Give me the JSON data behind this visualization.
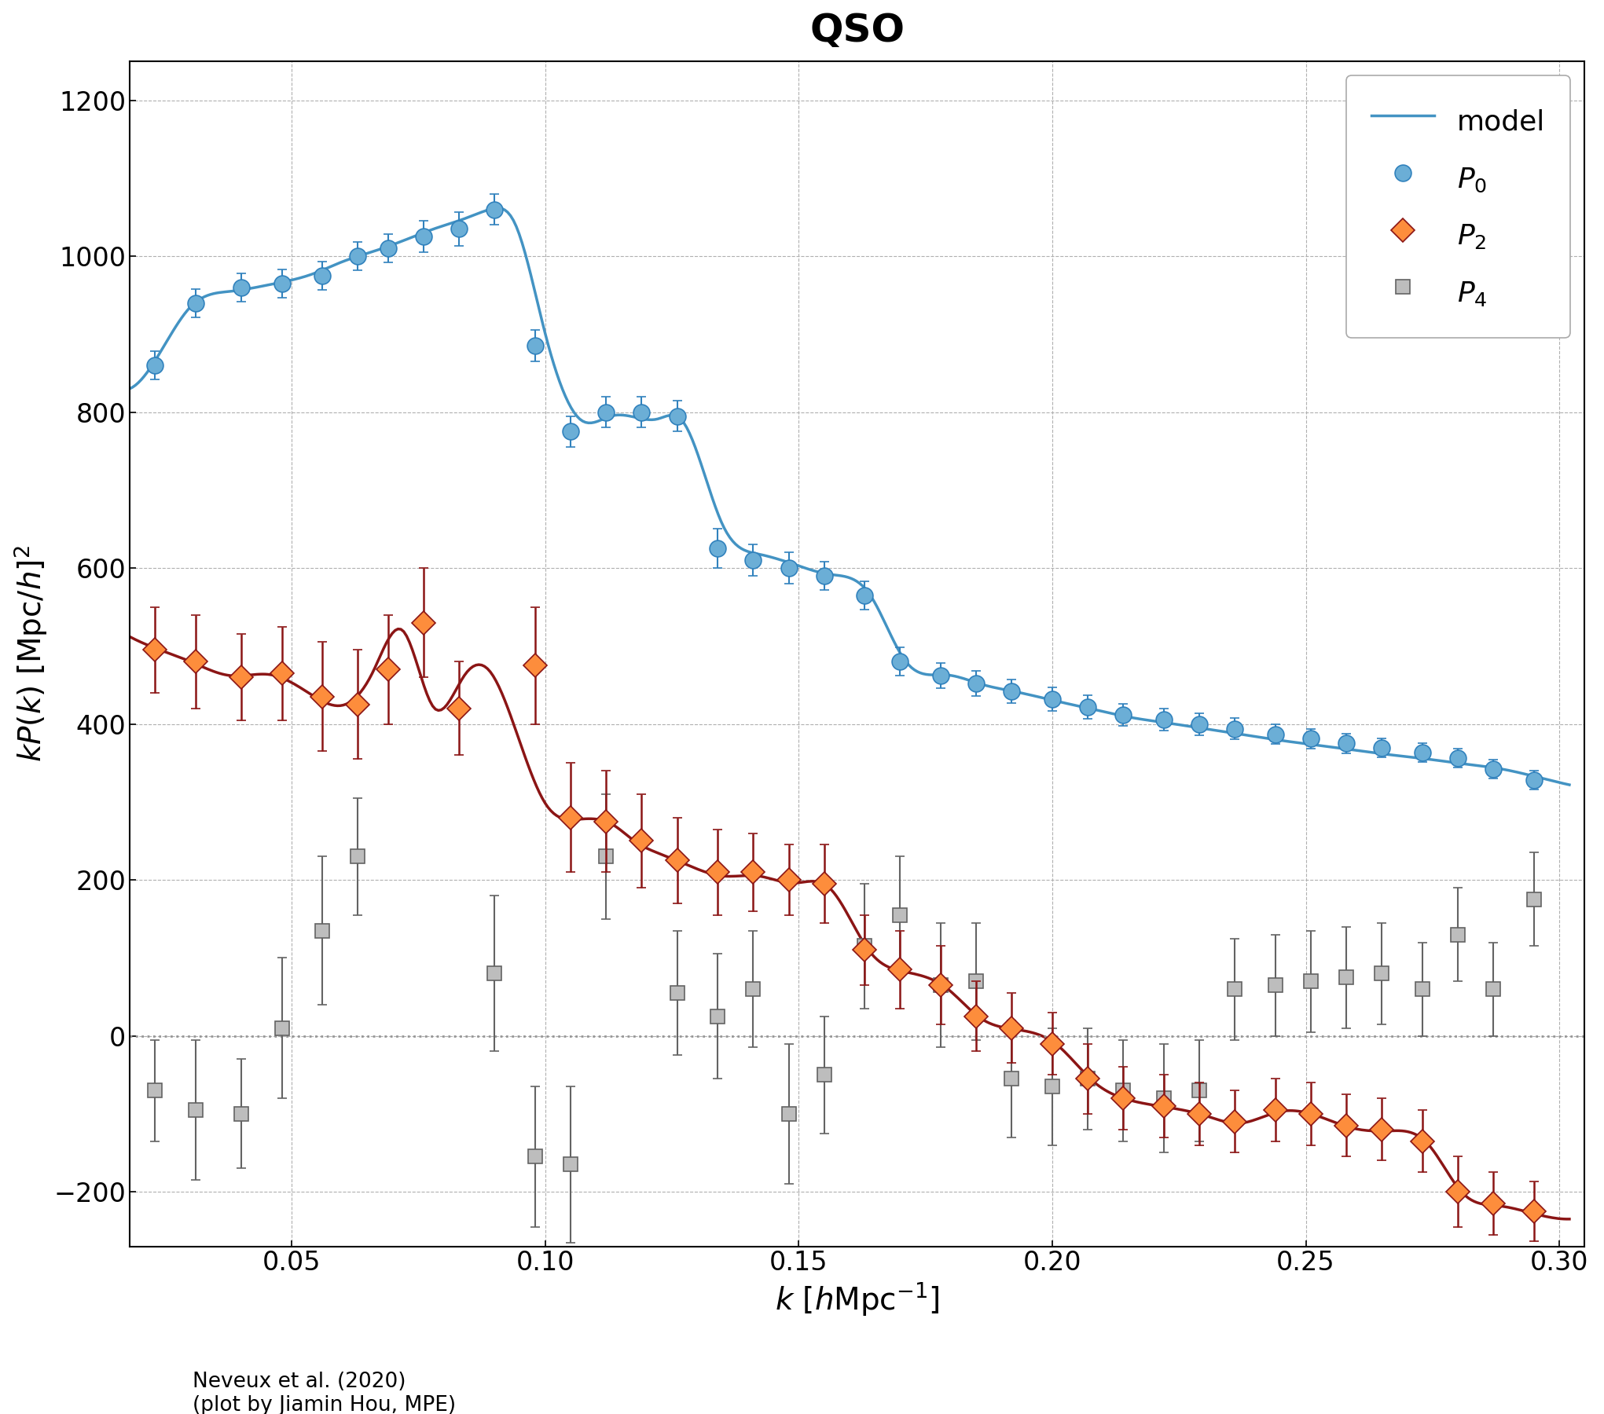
{
  "title": "QSO",
  "xlabel": "$k$ [$h$Mpc$^{-1}$]",
  "ylabel": "$kP(k)$ [Mpc/$h$]$^2$",
  "xlim": [
    0.018,
    0.305
  ],
  "ylim": [
    -270,
    1250
  ],
  "yticks": [
    -200,
    0,
    200,
    400,
    600,
    800,
    1000,
    1200
  ],
  "xticks": [
    0.05,
    0.1,
    0.15,
    0.2,
    0.25,
    0.3
  ],
  "footnote": "Neveux et al. (2020)\n(plot by Jiamin Hou, MPE)",
  "P0_k": [
    0.023,
    0.031,
    0.04,
    0.048,
    0.056,
    0.063,
    0.069,
    0.076,
    0.083,
    0.09,
    0.098,
    0.105,
    0.112,
    0.119,
    0.126,
    0.134,
    0.141,
    0.148,
    0.155,
    0.163,
    0.17,
    0.178,
    0.185,
    0.192,
    0.2,
    0.207,
    0.214,
    0.222,
    0.229,
    0.236,
    0.244,
    0.251,
    0.258,
    0.265,
    0.273,
    0.28,
    0.287,
    0.295
  ],
  "P0_v": [
    860,
    940,
    960,
    965,
    975,
    1000,
    1010,
    1025,
    1035,
    1060,
    885,
    775,
    800,
    800,
    795,
    625,
    610,
    600,
    590,
    565,
    480,
    462,
    452,
    442,
    432,
    422,
    412,
    406,
    400,
    394,
    387,
    381,
    375,
    369,
    363,
    356,
    342,
    328
  ],
  "P0_err": [
    18,
    18,
    18,
    18,
    18,
    18,
    18,
    20,
    22,
    20,
    20,
    20,
    20,
    20,
    20,
    25,
    20,
    20,
    18,
    18,
    18,
    16,
    16,
    15,
    15,
    15,
    14,
    14,
    14,
    14,
    13,
    13,
    13,
    12,
    12,
    12,
    12,
    12
  ],
  "P2_k": [
    0.023,
    0.031,
    0.04,
    0.048,
    0.056,
    0.063,
    0.069,
    0.076,
    0.083,
    0.098,
    0.105,
    0.112,
    0.119,
    0.126,
    0.134,
    0.141,
    0.148,
    0.155,
    0.163,
    0.17,
    0.178,
    0.185,
    0.192,
    0.2,
    0.207,
    0.214,
    0.222,
    0.229,
    0.236,
    0.244,
    0.251,
    0.258,
    0.265,
    0.273,
    0.28,
    0.287,
    0.295
  ],
  "P2_v": [
    495,
    480,
    460,
    465,
    435,
    425,
    470,
    530,
    420,
    475,
    280,
    275,
    250,
    225,
    210,
    210,
    200,
    195,
    110,
    85,
    65,
    25,
    10,
    -10,
    -55,
    -80,
    -90,
    -100,
    -110,
    -95,
    -100,
    -115,
    -120,
    -135,
    -200,
    -215,
    -225
  ],
  "P2_err": [
    55,
    60,
    55,
    60,
    70,
    70,
    70,
    70,
    60,
    75,
    70,
    65,
    60,
    55,
    55,
    50,
    45,
    50,
    45,
    50,
    50,
    45,
    45,
    40,
    45,
    40,
    40,
    40,
    40,
    40,
    40,
    40,
    40,
    40,
    45,
    40,
    38
  ],
  "P4_k": [
    0.023,
    0.031,
    0.04,
    0.048,
    0.056,
    0.063,
    0.09,
    0.098,
    0.105,
    0.112,
    0.126,
    0.134,
    0.141,
    0.148,
    0.155,
    0.163,
    0.17,
    0.178,
    0.185,
    0.192,
    0.2,
    0.207,
    0.214,
    0.222,
    0.229,
    0.236,
    0.244,
    0.251,
    0.258,
    0.265,
    0.273,
    0.28,
    0.287,
    0.295
  ],
  "P4_v": [
    -70,
    -95,
    -100,
    10,
    135,
    230,
    80,
    -155,
    -165,
    230,
    55,
    25,
    60,
    -100,
    -50,
    115,
    155,
    65,
    70,
    -55,
    -65,
    -55,
    -70,
    -80,
    -70,
    60,
    65,
    70,
    75,
    80,
    60,
    130,
    60,
    175
  ],
  "P4_err": [
    65,
    90,
    70,
    90,
    95,
    75,
    100,
    90,
    100,
    80,
    80,
    80,
    75,
    90,
    75,
    80,
    75,
    80,
    75,
    75,
    75,
    65,
    65,
    70,
    65,
    65,
    65,
    65,
    65,
    65,
    60,
    60,
    60,
    60
  ],
  "model_P0_knots": [
    0.018,
    0.022,
    0.03,
    0.038,
    0.046,
    0.054,
    0.06,
    0.066,
    0.072,
    0.078,
    0.084,
    0.089,
    0.094,
    0.1,
    0.107,
    0.113,
    0.118,
    0.122,
    0.127,
    0.135,
    0.142,
    0.149,
    0.156,
    0.164,
    0.171,
    0.179,
    0.186,
    0.193,
    0.201,
    0.208,
    0.215,
    0.223,
    0.23,
    0.237,
    0.245,
    0.252,
    0.259,
    0.266,
    0.274,
    0.281,
    0.288,
    0.295,
    0.302
  ],
  "model_P0_vals": [
    830,
    856,
    935,
    955,
    964,
    977,
    993,
    1006,
    1020,
    1035,
    1048,
    1060,
    1042,
    900,
    790,
    795,
    793,
    791,
    789,
    655,
    618,
    605,
    592,
    566,
    481,
    463,
    451,
    441,
    429,
    419,
    409,
    401,
    394,
    387,
    379,
    373,
    367,
    361,
    355,
    349,
    343,
    333,
    322
  ],
  "model_P2_knots": [
    0.018,
    0.022,
    0.03,
    0.038,
    0.046,
    0.054,
    0.06,
    0.066,
    0.072,
    0.078,
    0.084,
    0.089,
    0.094,
    0.1,
    0.107,
    0.113,
    0.118,
    0.122,
    0.127,
    0.135,
    0.142,
    0.149,
    0.156,
    0.164,
    0.171,
    0.179,
    0.186,
    0.193,
    0.201,
    0.208,
    0.215,
    0.223,
    0.23,
    0.237,
    0.245,
    0.252,
    0.259,
    0.266,
    0.274,
    0.281,
    0.288,
    0.295,
    0.302
  ],
  "model_P2_vals": [
    512,
    500,
    480,
    462,
    463,
    437,
    424,
    467,
    519,
    421,
    462,
    468,
    395,
    298,
    278,
    272,
    248,
    235,
    222,
    205,
    205,
    196,
    190,
    108,
    82,
    62,
    22,
    8,
    -12,
    -58,
    -82,
    -92,
    -102,
    -112,
    -97,
    -102,
    -118,
    -122,
    -138,
    -202,
    -218,
    -228,
    -235
  ],
  "colors": {
    "P0": "#6baed6",
    "P0_edge": "#3182bd",
    "P2": "#fd8d3c",
    "P2_edge": "#8b1515",
    "P4": "#bdbdbd",
    "P4_edge": "#636363",
    "model_P0": "#4393c3",
    "model_P2": "#8b1515",
    "model_P4_dotted": "#969696"
  },
  "title_fontsize": 36,
  "label_fontsize": 28,
  "tick_fontsize": 24,
  "legend_fontsize": 26
}
